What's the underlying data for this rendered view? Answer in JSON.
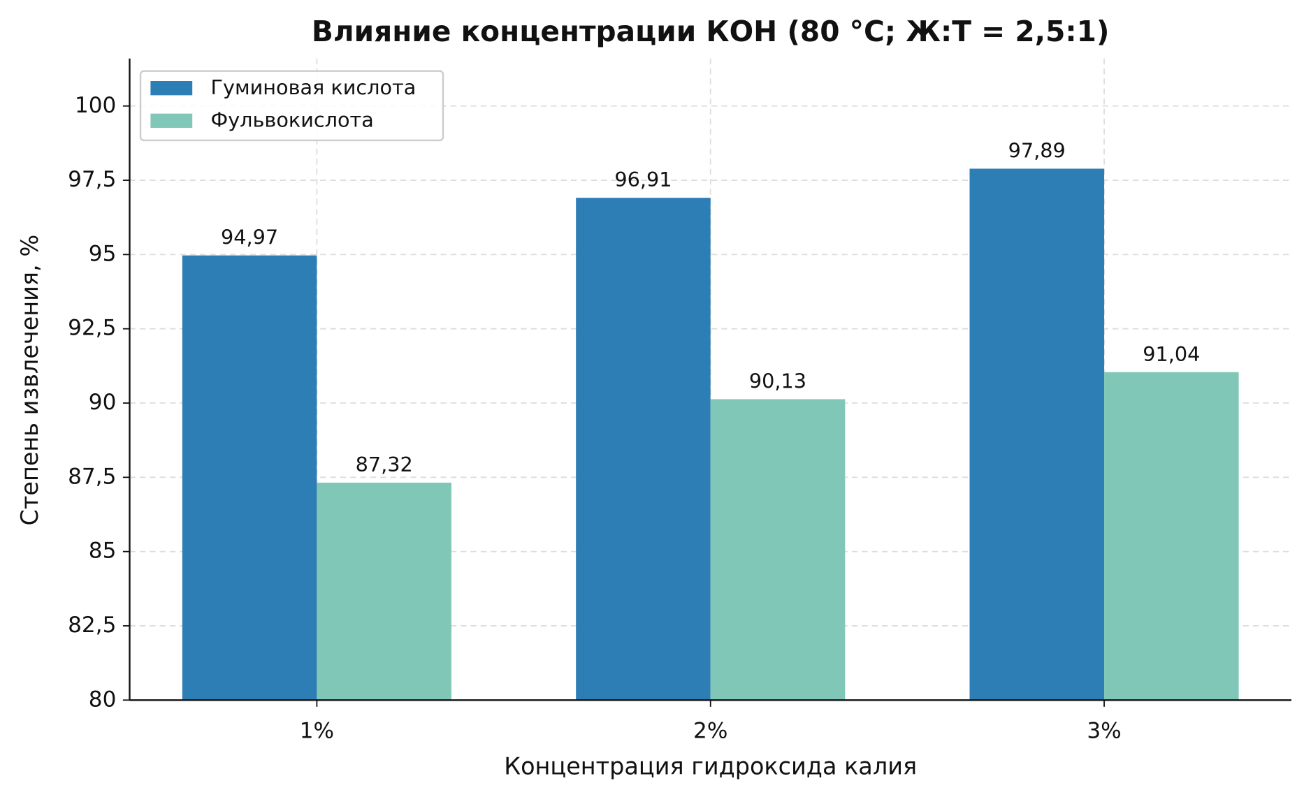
{
  "chart_data": {
    "type": "bar",
    "title": "Влияние концентрации КОН (80 °С; Ж:Т = 2,5:1)",
    "x_label": "Концентрация гидроксида калия",
    "y_label": "Степень извлечения, %",
    "categories": [
      "1%",
      "2%",
      "3%"
    ],
    "series": [
      {
        "name": "Гуминовая кислота",
        "color": "#2e7eb6",
        "values": [
          94.97,
          96.91,
          97.89
        ],
        "value_labels": [
          "94,97",
          "96,91",
          "97,89"
        ]
      },
      {
        "name": "Фульвокислота",
        "color": "#80c7b7",
        "values": [
          87.32,
          90.13,
          91.04
        ],
        "value_labels": [
          "87,32",
          "90,13",
          "91,04"
        ]
      }
    ],
    "ylim": [
      80,
      101.6
    ],
    "yticks": [
      80,
      {
        "value": 82.5,
        "label": "82,5"
      },
      85,
      {
        "value": 87.5,
        "label": "87,5"
      },
      90,
      {
        "value": 92.5,
        "label": "92,5"
      },
      95,
      {
        "value": 97.5,
        "label": "97,5"
      },
      100
    ],
    "grid": true,
    "legend": "upper left"
  }
}
